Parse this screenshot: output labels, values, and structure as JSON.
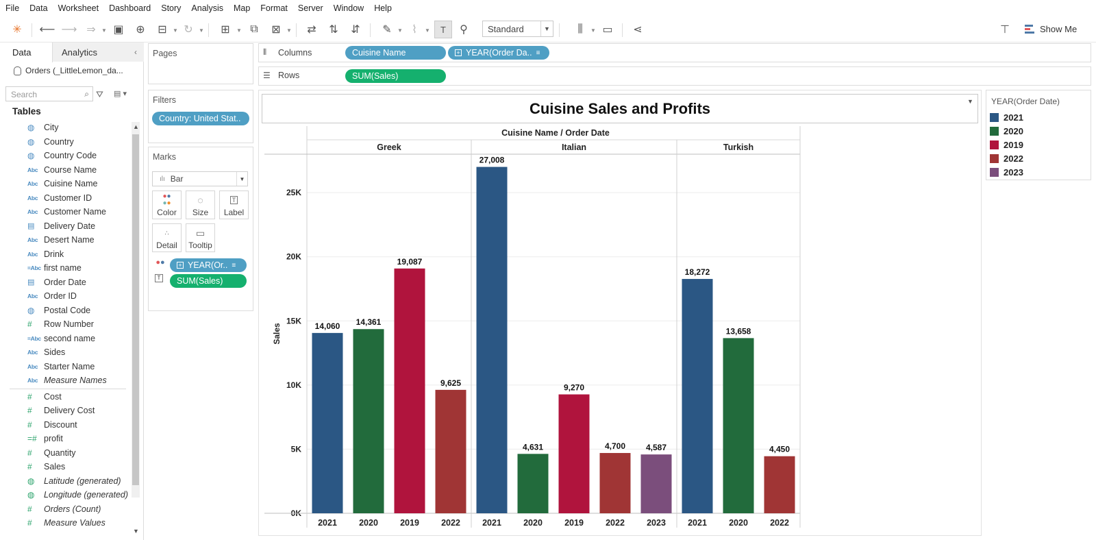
{
  "menu": [
    "File",
    "Data",
    "Worksheet",
    "Dashboard",
    "Story",
    "Analysis",
    "Map",
    "Format",
    "Server",
    "Window",
    "Help"
  ],
  "toolbar": {
    "fit_select": "Standard",
    "show_me": "Show Me"
  },
  "data_pane": {
    "tab_data": "Data",
    "tab_analytics": "Analytics",
    "datasource": "Orders (_LittleLemon_da...",
    "search_placeholder": "Search",
    "tables_heading": "Tables",
    "dimensions": [
      {
        "icon": "globe",
        "label": "City"
      },
      {
        "icon": "globe",
        "label": "Country"
      },
      {
        "icon": "globe",
        "label": "Country Code"
      },
      {
        "icon": "Abc",
        "label": "Course Name"
      },
      {
        "icon": "Abc",
        "label": "Cuisine Name"
      },
      {
        "icon": "Abc",
        "label": "Customer ID"
      },
      {
        "icon": "Abc",
        "label": "Customer Name"
      },
      {
        "icon": "calendar",
        "label": "Delivery Date"
      },
      {
        "icon": "Abc",
        "label": "Desert Name"
      },
      {
        "icon": "Abc",
        "label": "Drink"
      },
      {
        "icon": "=Abc",
        "label": "first name"
      },
      {
        "icon": "calendar",
        "label": "Order Date"
      },
      {
        "icon": "Abc",
        "label": "Order ID"
      },
      {
        "icon": "globe",
        "label": "Postal Code"
      },
      {
        "icon": "#",
        "label": "Row Number"
      },
      {
        "icon": "=Abc",
        "label": "second name"
      },
      {
        "icon": "Abc",
        "label": "Sides"
      },
      {
        "icon": "Abc",
        "label": "Starter Name"
      },
      {
        "icon": "Abc",
        "label": "Measure Names",
        "italic": true
      }
    ],
    "measures": [
      {
        "icon": "#",
        "label": "Cost"
      },
      {
        "icon": "#",
        "label": "Delivery Cost"
      },
      {
        "icon": "#",
        "label": "Discount"
      },
      {
        "icon": "=#",
        "label": "profit"
      },
      {
        "icon": "#",
        "label": "Quantity"
      },
      {
        "icon": "#",
        "label": "Sales"
      },
      {
        "icon": "globe",
        "label": "Latitude (generated)",
        "italic": true
      },
      {
        "icon": "globe",
        "label": "Longitude (generated)",
        "italic": true
      },
      {
        "icon": "#",
        "label": "Orders (Count)",
        "italic": true
      },
      {
        "icon": "#",
        "label": "Measure Values",
        "italic": true
      }
    ]
  },
  "pages": {
    "title": "Pages"
  },
  "filters": {
    "title": "Filters",
    "pill": "Country: United Stat.."
  },
  "marks": {
    "title": "Marks",
    "type": "Bar",
    "buttons": [
      "Color",
      "Size",
      "Label",
      "Detail",
      "Tooltip"
    ],
    "pill_color": "YEAR(Or..",
    "pill_label": "SUM(Sales)"
  },
  "columns": {
    "label": "Columns",
    "pill1": "Cuisine Name",
    "pill2": "YEAR(Order Da.."
  },
  "rows": {
    "label": "Rows",
    "pill1": "SUM(Sales)"
  },
  "legend": {
    "title": "YEAR(Order Date)",
    "items": [
      {
        "label": "2021",
        "color": "#2b5784"
      },
      {
        "label": "2020",
        "color": "#226b3c"
      },
      {
        "label": "2019",
        "color": "#b0143d"
      },
      {
        "label": "2022",
        "color": "#a03535"
      },
      {
        "label": "2023",
        "color": "#7b4e7c"
      }
    ]
  },
  "chart_data": {
    "type": "bar",
    "title": "Cuisine Sales and Profits",
    "header_title": "Cuisine Name / Order Date",
    "ylabel": "Sales",
    "ylim": [
      0,
      28000
    ],
    "yticks": [
      0,
      5000,
      10000,
      15000,
      20000,
      25000
    ],
    "ytick_labels": [
      "0K",
      "5K",
      "10K",
      "15K",
      "20K",
      "25K"
    ],
    "panels": [
      {
        "cuisine": "Greek",
        "bars": [
          {
            "year": "2021",
            "value": 14060,
            "label": "14,060"
          },
          {
            "year": "2020",
            "value": 14361,
            "label": "14,361"
          },
          {
            "year": "2019",
            "value": 19087,
            "label": "19,087"
          },
          {
            "year": "2022",
            "value": 9625,
            "label": "9,625"
          }
        ]
      },
      {
        "cuisine": "Italian",
        "bars": [
          {
            "year": "2021",
            "value": 27008,
            "label": "27,008"
          },
          {
            "year": "2020",
            "value": 4631,
            "label": "4,631"
          },
          {
            "year": "2019",
            "value": 9270,
            "label": "9,270"
          },
          {
            "year": "2022",
            "value": 4700,
            "label": "4,700"
          },
          {
            "year": "2023",
            "value": 4587,
            "label": "4,587"
          }
        ]
      },
      {
        "cuisine": "Turkish",
        "bars": [
          {
            "year": "2021",
            "value": 18272,
            "label": "18,272"
          },
          {
            "year": "2020",
            "value": 13658,
            "label": "13,658"
          },
          {
            "year": "2022",
            "value": 4450,
            "label": "4,450"
          }
        ]
      }
    ],
    "grid": true
  }
}
